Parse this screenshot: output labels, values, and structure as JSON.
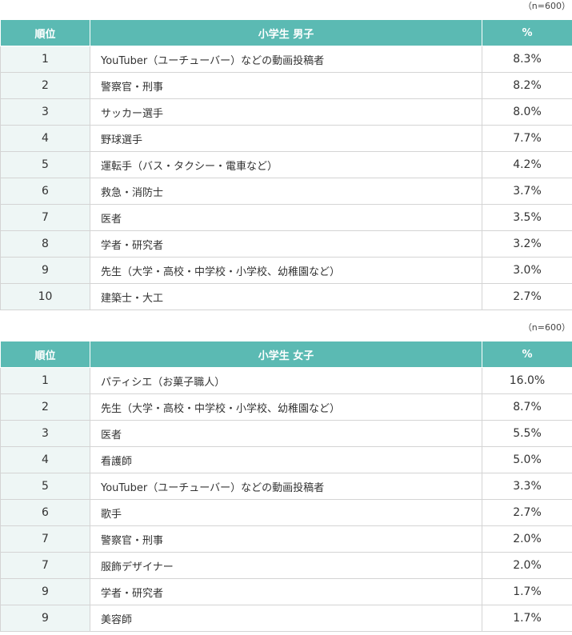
{
  "tables": [
    {
      "note": "（n=600）",
      "headers": [
        "順位",
        "小学生 男子",
        "%"
      ],
      "rows": [
        {
          "rank": "1",
          "name": "YouTuber（ユーチューバー）などの動画投稿者",
          "pct": "8.3%"
        },
        {
          "rank": "2",
          "name": "警察官・刑事",
          "pct": "8.2%"
        },
        {
          "rank": "3",
          "name": "サッカー選手",
          "pct": "8.0%"
        },
        {
          "rank": "4",
          "name": "野球選手",
          "pct": "7.7%"
        },
        {
          "rank": "5",
          "name": "運転手（バス・タクシー・電車など）",
          "pct": "4.2%"
        },
        {
          "rank": "6",
          "name": "救急・消防士",
          "pct": "3.7%"
        },
        {
          "rank": "7",
          "name": "医者",
          "pct": "3.5%"
        },
        {
          "rank": "8",
          "name": "学者・研究者",
          "pct": "3.2%"
        },
        {
          "rank": "9",
          "name": "先生（大学・高校・中学校・小学校、幼稚園など）",
          "pct": "3.0%"
        },
        {
          "rank": "10",
          "name": "建築士・大工",
          "pct": "2.7%"
        }
      ]
    },
    {
      "note": "（n=600）",
      "headers": [
        "順位",
        "小学生 女子",
        "%"
      ],
      "rows": [
        {
          "rank": "1",
          "name": "パティシエ（お菓子職人）",
          "pct": "16.0%"
        },
        {
          "rank": "2",
          "name": "先生（大学・高校・中学校・小学校、幼稚園など）",
          "pct": "8.7%"
        },
        {
          "rank": "3",
          "name": "医者",
          "pct": "5.5%"
        },
        {
          "rank": "4",
          "name": "看護師",
          "pct": "5.0%"
        },
        {
          "rank": "5",
          "name": "YouTuber（ユーチューバー）などの動画投稿者",
          "pct": "3.3%"
        },
        {
          "rank": "6",
          "name": "歌手",
          "pct": "2.7%"
        },
        {
          "rank": "7",
          "name": "警察官・刑事",
          "pct": "2.0%"
        },
        {
          "rank": "7",
          "name": "服飾デザイナー",
          "pct": "2.0%"
        },
        {
          "rank": "9",
          "name": "学者・研究者",
          "pct": "1.7%"
        },
        {
          "rank": "9",
          "name": "美容師",
          "pct": "1.7%"
        }
      ]
    }
  ]
}
